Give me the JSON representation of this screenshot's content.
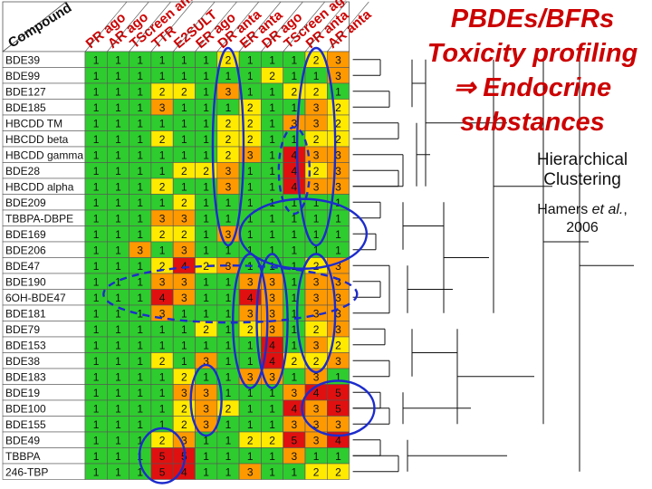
{
  "slide": {
    "title_lines": [
      "PBDEs/BFRs",
      "Toxicity profiling",
      "Endocrine",
      "substances"
    ],
    "implies_symbol": "⇒",
    "method_label_lines": [
      "Hierarchical",
      "Clustering"
    ],
    "citation_author": "Hamers ",
    "citation_etal": "et al.",
    "citation_suffix": ",",
    "citation_year": "2006"
  },
  "table": {
    "corner_header": "Compound",
    "column_headers": [
      "PR ago",
      "AR ago",
      "TScreen ant",
      "TTR",
      "E2SULT",
      "ER ago",
      "DR anta",
      "ER anta",
      "DR ago",
      "TScreen ago",
      "PR anta",
      "AR anta"
    ],
    "rows": [
      {
        "compound": "BDE39",
        "values": [
          "1",
          "1",
          "1",
          "1",
          "1",
          "1",
          "2",
          "1",
          "1",
          "1",
          "2",
          "3"
        ]
      },
      {
        "compound": "BDE99",
        "values": [
          "1",
          "1",
          "1",
          "1",
          "1",
          "1",
          "1",
          "1",
          "2",
          "1",
          "1",
          "3"
        ]
      },
      {
        "compound": "BDE127",
        "values": [
          "1",
          "1",
          "1",
          "2",
          "2",
          "1",
          "3",
          "1",
          "1",
          "2",
          "2",
          "1"
        ]
      },
      {
        "compound": "BDE185",
        "values": [
          "1",
          "1",
          "1",
          "3",
          "1",
          "1",
          "1",
          "2",
          "1",
          "1",
          "3",
          "2"
        ]
      },
      {
        "compound": "HBCDD TM",
        "values": [
          "1",
          "1",
          "1",
          "1",
          "1",
          "1",
          "2",
          "2",
          "1",
          "3",
          "3",
          "2"
        ]
      },
      {
        "compound": "HBCDD beta",
        "values": [
          "1",
          "1",
          "1",
          "2",
          "1",
          "1",
          "2",
          "2",
          "1",
          "1",
          "2",
          "2"
        ]
      },
      {
        "compound": "HBCDD gamma",
        "values": [
          "1",
          "1",
          "1",
          "1",
          "1",
          "1",
          "2",
          "3",
          "1",
          "4",
          "3",
          "3"
        ]
      },
      {
        "compound": "BDE28",
        "values": [
          "1",
          "1",
          "1",
          "1",
          "2",
          "2",
          "3",
          "1",
          "1",
          "4",
          "2",
          "3"
        ]
      },
      {
        "compound": "HBCDD alpha",
        "values": [
          "1",
          "1",
          "1",
          "2",
          "1",
          "1",
          "3",
          "1",
          "1",
          "4",
          "3",
          "3"
        ]
      },
      {
        "compound": "BDE209",
        "values": [
          "1",
          "1",
          "1",
          "1",
          "2",
          "1",
          "1",
          "1",
          "1",
          "1",
          "1",
          "1"
        ]
      },
      {
        "compound": "TBBPA-DBPE",
        "values": [
          "1",
          "1",
          "1",
          "3",
          "3",
          "1",
          "1",
          "1",
          "1",
          "1",
          "1",
          "1"
        ]
      },
      {
        "compound": "BDE169",
        "values": [
          "1",
          "1",
          "1",
          "2",
          "2",
          "1",
          "3",
          "1",
          "1",
          "1",
          "1",
          "1"
        ]
      },
      {
        "compound": "BDE206",
        "values": [
          "1",
          "1",
          "3",
          "1",
          "3",
          "1",
          "1",
          "1",
          "1",
          "1",
          "1",
          "1"
        ]
      },
      {
        "compound": "BDE47",
        "values": [
          "1",
          "1",
          "1",
          "2",
          "4",
          "2",
          "3",
          "1",
          "1",
          "1",
          "2",
          "3"
        ]
      },
      {
        "compound": "BDE190",
        "values": [
          "1",
          "1",
          "1",
          "3",
          "3",
          "1",
          "1",
          "3",
          "3",
          "1",
          "3",
          "3"
        ]
      },
      {
        "compound": "6OH-BDE47",
        "values": [
          "1",
          "1",
          "1",
          "4",
          "3",
          "1",
          "1",
          "4",
          "3",
          "1",
          "3",
          "3"
        ]
      },
      {
        "compound": "BDE181",
        "values": [
          "1",
          "1",
          "1",
          "3",
          "1",
          "1",
          "1",
          "3",
          "3",
          "1",
          "3",
          "3"
        ]
      },
      {
        "compound": "BDE79",
        "values": [
          "1",
          "1",
          "1",
          "1",
          "1",
          "2",
          "1",
          "2",
          "3",
          "1",
          "2",
          "3"
        ]
      },
      {
        "compound": "BDE153",
        "values": [
          "1",
          "1",
          "1",
          "1",
          "1",
          "1",
          "1",
          "1",
          "4",
          "1",
          "3",
          "2"
        ]
      },
      {
        "compound": "BDE38",
        "values": [
          "1",
          "1",
          "1",
          "2",
          "1",
          "3",
          "1",
          "1",
          "4",
          "2",
          "2",
          "3"
        ]
      },
      {
        "compound": "BDE183",
        "values": [
          "1",
          "1",
          "1",
          "1",
          "2",
          "1",
          "1",
          "3",
          "3",
          "1",
          "3",
          "1"
        ]
      },
      {
        "compound": "BDE19",
        "values": [
          "1",
          "1",
          "1",
          "1",
          "3",
          "3",
          "1",
          "1",
          "1",
          "3",
          "4",
          "5"
        ]
      },
      {
        "compound": "BDE100",
        "values": [
          "1",
          "1",
          "1",
          "1",
          "2",
          "3",
          "2",
          "1",
          "1",
          "4",
          "3",
          "5"
        ]
      },
      {
        "compound": "BDE155",
        "values": [
          "1",
          "1",
          "1",
          "1",
          "2",
          "3",
          "1",
          "1",
          "1",
          "3",
          "3",
          "3"
        ]
      },
      {
        "compound": "BDE49",
        "values": [
          "1",
          "1",
          "1",
          "2",
          "3",
          "1",
          "1",
          "2",
          "2",
          "5",
          "3",
          "4"
        ]
      },
      {
        "compound": "TBBPA",
        "values": [
          "1",
          "1",
          "1",
          "5",
          "5",
          "1",
          "1",
          "1",
          "1",
          "3",
          "1",
          "1"
        ]
      },
      {
        "compound": "246-TBP",
        "values": [
          "1",
          "1",
          "1",
          "5",
          "4",
          "1",
          "1",
          "3",
          "1",
          "1",
          "2",
          "2"
        ]
      }
    ]
  },
  "colors": {
    "green": "#2ecc2e",
    "yellow": "#ffea00",
    "orange": "#ff9900",
    "red": "#e01010",
    "header_bg": "#ffffff",
    "name_bg": "#ffffff",
    "grid": "#555555",
    "oval": "#1c2ccc",
    "title": "#cc0000"
  }
}
